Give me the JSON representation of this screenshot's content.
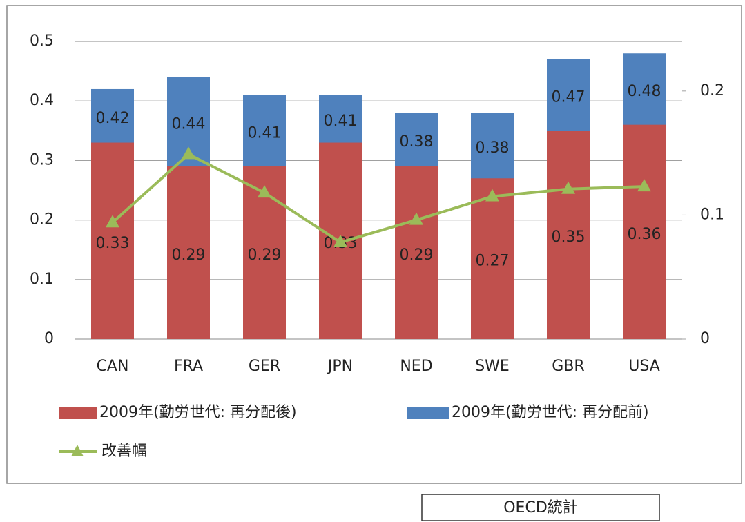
{
  "chart_data": {
    "type": "bar-line",
    "categories": [
      "CAN",
      "FRA",
      "GER",
      "JPN",
      "NED",
      "SWE",
      "GBR",
      "USA"
    ],
    "series": [
      {
        "name": "2009年(勤労世代: 再分配後)",
        "color": "#c0504d",
        "type": "bar",
        "values": [
          0.33,
          0.29,
          0.29,
          0.33,
          0.29,
          0.27,
          0.35,
          0.36
        ]
      },
      {
        "name": "2009年(勤労世代: 再分配前)",
        "color": "#4f81bd",
        "type": "bar",
        "values": [
          0.42,
          0.44,
          0.41,
          0.41,
          0.38,
          0.38,
          0.47,
          0.48
        ]
      },
      {
        "name": "改善幅",
        "color": "#9bbb59",
        "type": "line",
        "axis": "y2",
        "values": [
          0.094,
          0.149,
          0.118,
          0.078,
          0.096,
          0.115,
          0.121,
          0.123
        ]
      }
    ],
    "ylim": [
      0,
      0.5
    ],
    "yticks": [
      0,
      0.1,
      0.2,
      0.3,
      0.4,
      0.5
    ],
    "y2lim": [
      0,
      0.24
    ],
    "y2ticks": [
      0,
      0.1,
      0.2
    ],
    "grid": true,
    "source": "OECD統計"
  }
}
